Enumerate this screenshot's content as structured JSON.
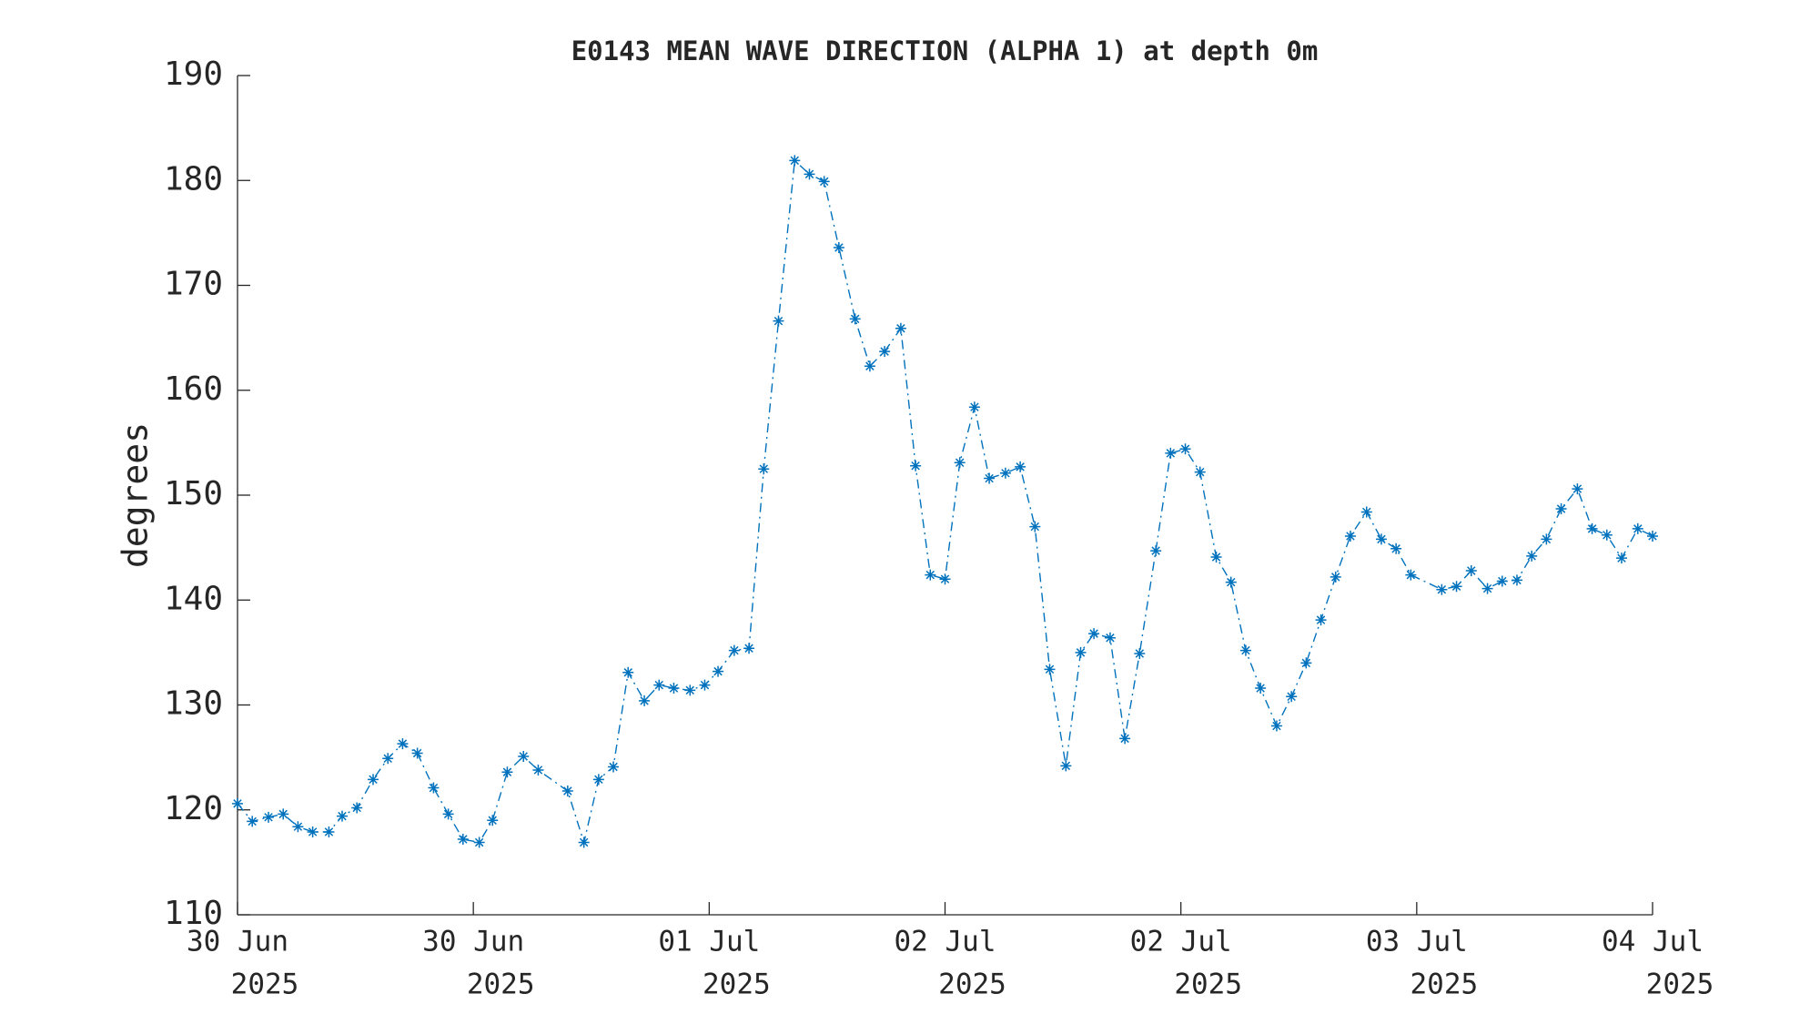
{
  "chart_data": {
    "type": "line",
    "title": "E0143 MEAN WAVE DIRECTION (ALPHA 1) at depth 0m",
    "ylabel": "degrees",
    "x": [
      0,
      1.0,
      2.1,
      3.1,
      4.1,
      5.1,
      6.2,
      7.1,
      8.1,
      9.2,
      10.2,
      11.2,
      12.2,
      13.3,
      14.3,
      15.3,
      16.4,
      17.3,
      18.3,
      19.4,
      20.4,
      22.4,
      23.5,
      24.5,
      25.5,
      26.5,
      27.6,
      28.6,
      29.6,
      30.7,
      31.7,
      32.6,
      33.7,
      34.7,
      35.7,
      36.7,
      37.8,
      38.8,
      39.8,
      40.8,
      41.9,
      42.9,
      43.9,
      45.0,
      46.0,
      47.0,
      48.0,
      49.0,
      50.0,
      51.0,
      52.1,
      53.1,
      54.1,
      55.1,
      56.2,
      57.2,
      58.1,
      59.2,
      60.2,
      61.2,
      62.3,
      63.3,
      64.3,
      65.3,
      66.4,
      67.4,
      68.4,
      69.4,
      70.5,
      71.5,
      72.5,
      73.5,
      74.5,
      75.5,
      76.6,
      77.6,
      78.6,
      79.6,
      81.7,
      82.7,
      83.7,
      84.8,
      85.8,
      86.8,
      87.8,
      88.8,
      89.8,
      90.9,
      91.9,
      92.9,
      93.9,
      95.0,
      96.0
    ],
    "series": [
      {
        "name": "E0143",
        "color": "#0072bd",
        "values": [
          120.6,
          118.9,
          119.3,
          119.6,
          118.4,
          117.9,
          117.9,
          119.4,
          120.2,
          122.9,
          124.9,
          126.3,
          125.4,
          122.1,
          119.6,
          117.2,
          116.9,
          119.0,
          123.6,
          125.1,
          123.8,
          121.8,
          116.9,
          122.9,
          124.1,
          133.1,
          130.4,
          131.9,
          131.6,
          131.4,
          131.9,
          133.2,
          135.2,
          135.4,
          152.5,
          166.6,
          181.9,
          180.6,
          179.9,
          173.6,
          166.8,
          162.3,
          163.7,
          165.9,
          152.8,
          142.4,
          142.0,
          153.1,
          158.4,
          151.6,
          152.1,
          152.7,
          147.0,
          133.4,
          124.2,
          135.0,
          136.8,
          136.4,
          126.8,
          134.9,
          144.7,
          154.0,
          154.4,
          152.2,
          144.1,
          141.7,
          135.2,
          131.6,
          128.0,
          130.8,
          134.0,
          138.1,
          142.2,
          146.1,
          148.4,
          145.8,
          144.9,
          142.4,
          141.0,
          141.3,
          142.8,
          141.1,
          141.8,
          141.9,
          144.2,
          145.8,
          148.7,
          150.6,
          146.8,
          146.2,
          144.0,
          146.8,
          146.1
        ]
      }
    ],
    "xlim": [
      0,
      96
    ],
    "xticks": [
      {
        "value": 0,
        "label": [
          "30 Jun",
          "2025"
        ]
      },
      {
        "value": 16,
        "label": [
          "30 Jun",
          "2025"
        ]
      },
      {
        "value": 32,
        "label": [
          "01 Jul",
          "2025"
        ]
      },
      {
        "value": 48,
        "label": [
          "02 Jul",
          "2025"
        ]
      },
      {
        "value": 64,
        "label": [
          "02 Jul",
          "2025"
        ]
      },
      {
        "value": 80,
        "label": [
          "03 Jul",
          "2025"
        ]
      },
      {
        "value": 96,
        "label": [
          "04 Jul",
          "2025"
        ]
      }
    ],
    "ylim": [
      110,
      190
    ],
    "yticks": [
      110,
      120,
      130,
      140,
      150,
      160,
      170,
      180,
      190
    ],
    "grid": false
  }
}
